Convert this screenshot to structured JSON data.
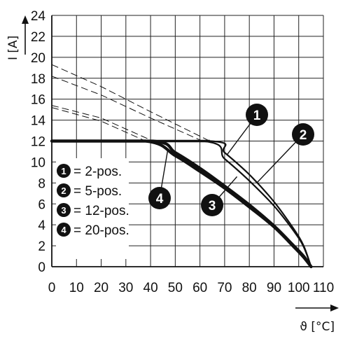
{
  "chart_data": {
    "type": "line",
    "title": "",
    "xlabel": "ϑ [°C]",
    "ylabel": "I [A]",
    "xlim": [
      0,
      110
    ],
    "ylim": [
      0,
      24
    ],
    "x_ticks": [
      "0",
      "10",
      "20",
      "30",
      "40",
      "50",
      "60",
      "70",
      "80",
      "90",
      "100",
      "110"
    ],
    "y_ticks": [
      "0",
      "2",
      "4",
      "6",
      "8",
      "10",
      "12",
      "14",
      "16",
      "18",
      "20",
      "22",
      "24"
    ],
    "grid": true,
    "legend_position": "left",
    "series": [
      {
        "name": "= 2-pos.",
        "marker": "1",
        "derating": [
          [
            0,
            19.3
          ],
          [
            20,
            17.2
          ],
          [
            40,
            14.8
          ],
          [
            64,
            12.0
          ]
        ],
        "points": [
          [
            0,
            12
          ],
          [
            64,
            12
          ],
          [
            70,
            10.9
          ],
          [
            80,
            8.8
          ],
          [
            90,
            6.2
          ],
          [
            98,
            3.6
          ],
          [
            102,
            2.0
          ],
          [
            105,
            0
          ]
        ]
      },
      {
        "name": "= 5-pos.",
        "marker": "2",
        "derating": [
          [
            0,
            18.2
          ],
          [
            20,
            16.4
          ],
          [
            40,
            14.2
          ],
          [
            61,
            12.0
          ]
        ],
        "points": [
          [
            0,
            12
          ],
          [
            61,
            12
          ],
          [
            70,
            10.3
          ],
          [
            80,
            8.2
          ],
          [
            90,
            5.8
          ],
          [
            98,
            3.4
          ],
          [
            102,
            1.9
          ],
          [
            105,
            0
          ]
        ]
      },
      {
        "name": "= 12-pos.",
        "marker": "3",
        "derating": [
          [
            0,
            15.4
          ],
          [
            20,
            14.2
          ],
          [
            41,
            12.0
          ]
        ],
        "points": [
          [
            0,
            12
          ],
          [
            41,
            12
          ],
          [
            50,
            10.9
          ],
          [
            60,
            9.4
          ],
          [
            70,
            7.7
          ],
          [
            80,
            5.9
          ],
          [
            90,
            3.9
          ],
          [
            98,
            2.0
          ],
          [
            102,
            1.0
          ],
          [
            105,
            0
          ]
        ]
      },
      {
        "name": "= 20-pos.",
        "marker": "4",
        "derating": [
          [
            0,
            15.2
          ],
          [
            20,
            13.9
          ],
          [
            38,
            12.0
          ]
        ],
        "points": [
          [
            0,
            12
          ],
          [
            38,
            12
          ],
          [
            50,
            10.6
          ],
          [
            60,
            9.1
          ],
          [
            70,
            7.5
          ],
          [
            80,
            5.7
          ],
          [
            90,
            3.8
          ],
          [
            98,
            1.9
          ],
          [
            102,
            0.9
          ],
          [
            105,
            0
          ]
        ]
      }
    ],
    "colors": {
      "line": "#111111",
      "grid": "#222222",
      "badge": "#111111",
      "badge_text": "#ffffff"
    }
  }
}
